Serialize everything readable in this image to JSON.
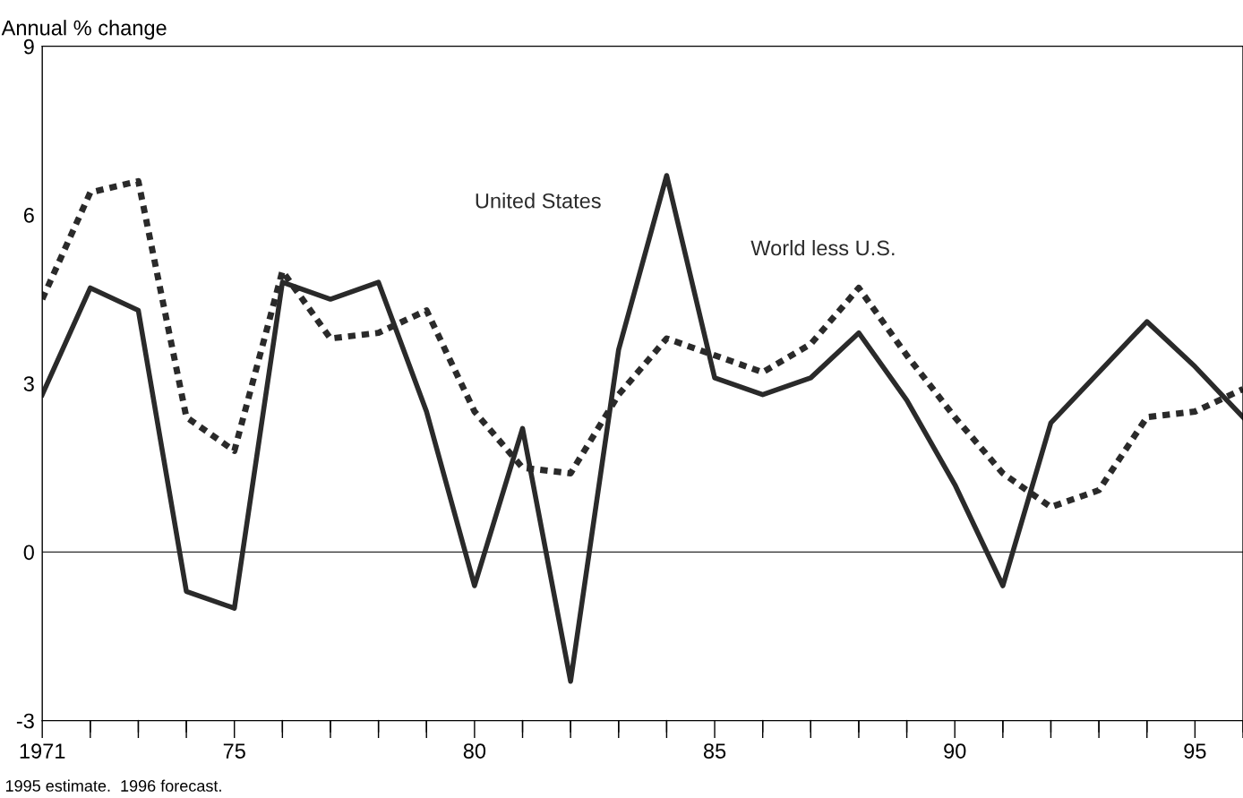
{
  "chart_data": {
    "type": "line",
    "ylabel": "Annual % change",
    "x": [
      1971,
      1972,
      1973,
      1974,
      1975,
      1976,
      1977,
      1978,
      1979,
      1980,
      1981,
      1982,
      1983,
      1984,
      1985,
      1986,
      1987,
      1988,
      1989,
      1990,
      1991,
      1992,
      1993,
      1994,
      1995,
      1996
    ],
    "series": [
      {
        "name": "United States",
        "color": "#2a2a2a",
        "line_style": "solid",
        "values": [
          2.8,
          4.7,
          4.3,
          -0.7,
          -1.0,
          4.8,
          4.5,
          4.8,
          2.5,
          -0.6,
          2.2,
          -2.3,
          3.6,
          6.7,
          3.1,
          2.8,
          3.1,
          3.9,
          2.7,
          1.2,
          -0.6,
          2.3,
          3.2,
          4.1,
          3.3,
          2.4
        ]
      },
      {
        "name": "World less U.S.",
        "color": "#2a2a2a",
        "line_style": "dashed",
        "values": [
          4.5,
          6.4,
          6.6,
          2.4,
          1.8,
          5.0,
          3.8,
          3.9,
          4.3,
          2.5,
          1.5,
          1.4,
          2.8,
          3.8,
          3.5,
          3.2,
          3.7,
          4.7,
          3.5,
          2.4,
          1.4,
          0.8,
          1.1,
          2.4,
          2.5,
          2.9
        ]
      }
    ],
    "xlim": [
      1971,
      1996
    ],
    "xticks": [
      {
        "value": 1971,
        "label": "1971"
      },
      {
        "value": 1972,
        "label": null
      },
      {
        "value": 1973,
        "label": null
      },
      {
        "value": 1974,
        "label": null
      },
      {
        "value": 1975,
        "label": "75"
      },
      {
        "value": 1976,
        "label": null
      },
      {
        "value": 1977,
        "label": null
      },
      {
        "value": 1978,
        "label": null
      },
      {
        "value": 1979,
        "label": null
      },
      {
        "value": 1980,
        "label": "80"
      },
      {
        "value": 1981,
        "label": null
      },
      {
        "value": 1982,
        "label": null
      },
      {
        "value": 1983,
        "label": null
      },
      {
        "value": 1984,
        "label": null
      },
      {
        "value": 1985,
        "label": "85"
      },
      {
        "value": 1986,
        "label": null
      },
      {
        "value": 1987,
        "label": null
      },
      {
        "value": 1988,
        "label": null
      },
      {
        "value": 1989,
        "label": null
      },
      {
        "value": 1990,
        "label": "90"
      },
      {
        "value": 1991,
        "label": null
      },
      {
        "value": 1992,
        "label": null
      },
      {
        "value": 1993,
        "label": null
      },
      {
        "value": 1994,
        "label": null
      },
      {
        "value": 1995,
        "label": "95"
      },
      {
        "value": 1996,
        "label": null
      }
    ],
    "ylim": [
      -3,
      9
    ],
    "yticks": [
      -3,
      0,
      3,
      6,
      9
    ],
    "ref_lines": [
      {
        "axis": "y",
        "value": 0,
        "color": "#2a2a2a"
      }
    ],
    "grid": false,
    "legend": false,
    "marker": "none",
    "annotations": [
      "1995 estimate.  1996 forecast."
    ]
  }
}
